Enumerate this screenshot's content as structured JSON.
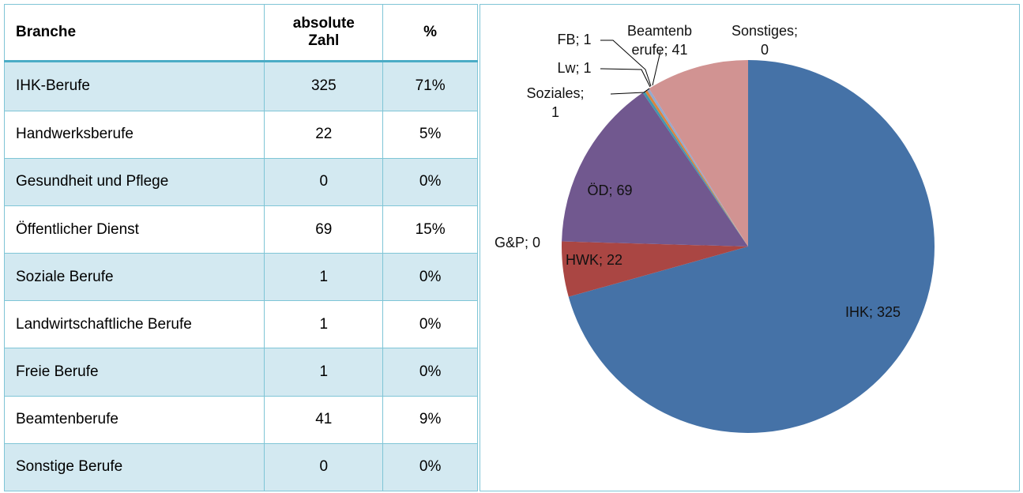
{
  "table": {
    "header": [
      "Branche",
      "absolute Zahl",
      "%"
    ],
    "rows": [
      [
        "IHK-Berufe",
        "325",
        "71%"
      ],
      [
        "Handwerksberufe",
        "22",
        "5%"
      ],
      [
        "Gesundheit und Pflege",
        "0",
        "0%"
      ],
      [
        "Öffentlicher Dienst",
        "69",
        "15%"
      ],
      [
        "Soziale Berufe",
        "1",
        "0%"
      ],
      [
        "Landwirtschaftliche Berufe",
        "1",
        "0%"
      ],
      [
        "Freie Berufe",
        "1",
        "0%"
      ],
      [
        "Beamtenberufe",
        "41",
        "9%"
      ],
      [
        "Sonstige Berufe",
        "0",
        "0%"
      ]
    ]
  },
  "chart_data": {
    "type": "pie",
    "labels": [
      [
        "IHK; 325"
      ],
      [
        "HWK; 22"
      ],
      [
        "G&P; 0"
      ],
      [
        "ÖD; 69"
      ],
      [
        "Soziales;",
        "1"
      ],
      [
        "Lw; 1"
      ],
      [
        "FB; 1"
      ],
      [
        "Beamtenb",
        "erufe; 41"
      ],
      [
        "Sonstiges;",
        "0"
      ]
    ],
    "values": [
      325,
      22,
      0,
      69,
      1,
      1,
      1,
      41,
      0
    ],
    "colors": [
      "#4572a7",
      "#aa4643",
      "#89a54e",
      "#71588f",
      "#4198af",
      "#db843d",
      "#93a9cf",
      "#d19392",
      "#b9cd96"
    ]
  }
}
